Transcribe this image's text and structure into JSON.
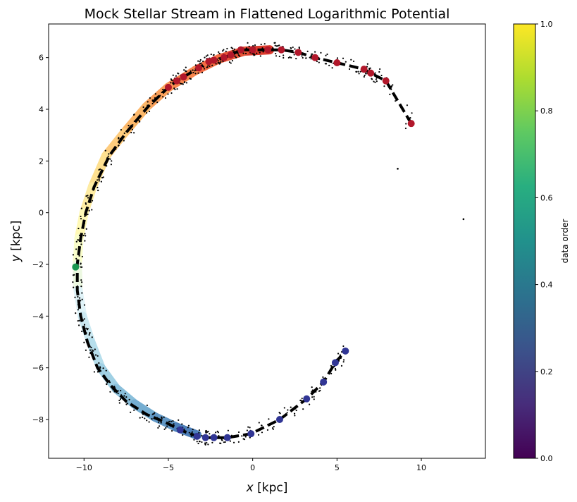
{
  "chart_data": {
    "type": "scatter",
    "title": "Mock Stellar Stream in Flattened Logarithmic Potential",
    "xlabel_var": "x",
    "xlabel_unit": " [kpc]",
    "ylabel_var": "y",
    "ylabel_unit": " [kpc]",
    "xlim": [
      -12.1,
      13.8
    ],
    "ylim": [
      -9.5,
      7.3
    ],
    "xticks": [
      -10,
      -5,
      0,
      5,
      10
    ],
    "yticks": [
      -8,
      -6,
      -4,
      -2,
      0,
      2,
      4,
      6
    ],
    "tick_labels_x": [
      "−10",
      "−5",
      "0",
      "5",
      "10"
    ],
    "tick_labels_y": [
      "−8",
      "−6",
      "−4",
      "−2",
      "0",
      "2",
      "4",
      "6"
    ],
    "grid": false,
    "colorbar": {
      "label": "data order",
      "colormap": "viridis",
      "range": [
        0,
        1
      ],
      "ticks": [
        0.0,
        0.2,
        0.4,
        0.6,
        0.8,
        1.0
      ],
      "tick_labels": [
        "0.0",
        "0.2",
        "0.4",
        "0.6",
        "0.8",
        "1.0"
      ]
    },
    "stream_band": {
      "colormap": "RdYlBu",
      "points": [
        [
          1.0,
          6.3
        ],
        [
          -0.5,
          6.25
        ],
        [
          -2.0,
          5.95
        ],
        [
          -3.4,
          5.5
        ],
        [
          -5.0,
          4.85
        ],
        [
          -6.3,
          4.1
        ],
        [
          -7.6,
          3.1
        ],
        [
          -8.7,
          2.2
        ],
        [
          -9.5,
          1.0
        ],
        [
          -10.0,
          0.0
        ],
        [
          -10.3,
          -1.0
        ],
        [
          -10.4,
          -2.0
        ],
        [
          -10.35,
          -3.0
        ],
        [
          -10.1,
          -4.0
        ],
        [
          -9.6,
          -5.0
        ],
        [
          -9.0,
          -6.0
        ],
        [
          -8.1,
          -6.8
        ],
        [
          -7.0,
          -7.4
        ],
        [
          -5.8,
          -7.9
        ],
        [
          -4.5,
          -8.3
        ],
        [
          -3.3,
          -8.6
        ]
      ]
    },
    "track": {
      "color": "#000000",
      "style": "dashed",
      "points": [
        [
          9.4,
          3.45
        ],
        [
          7.9,
          5.1
        ],
        [
          7.0,
          5.4
        ],
        [
          6.6,
          5.55
        ],
        [
          5.0,
          5.8
        ],
        [
          3.7,
          6.0
        ],
        [
          2.7,
          6.2
        ],
        [
          1.7,
          6.3
        ],
        [
          0.9,
          6.3
        ],
        [
          0.0,
          6.3
        ],
        [
          -0.7,
          6.3
        ],
        [
          -1.3,
          6.1
        ],
        [
          -1.7,
          6.0
        ],
        [
          -2.3,
          5.9
        ],
        [
          -2.6,
          5.85
        ],
        [
          -3.2,
          5.6
        ],
        [
          -4.1,
          5.25
        ],
        [
          -4.5,
          5.1
        ],
        [
          -5.0,
          4.85
        ],
        [
          -6.2,
          4.1
        ],
        [
          -7.5,
          3.1
        ],
        [
          -8.5,
          2.2
        ],
        [
          -9.4,
          1.0
        ],
        [
          -9.9,
          0.0
        ],
        [
          -10.2,
          -1.0
        ],
        [
          -10.4,
          -2.0
        ],
        [
          -10.4,
          -3.0
        ],
        [
          -10.2,
          -4.0
        ],
        [
          -9.8,
          -5.0
        ],
        [
          -9.2,
          -6.0
        ],
        [
          -8.4,
          -6.7
        ],
        [
          -7.5,
          -7.3
        ],
        [
          -6.3,
          -7.8
        ],
        [
          -5.2,
          -8.1
        ],
        [
          -4.3,
          -8.4
        ],
        [
          -3.3,
          -8.65
        ],
        [
          -2.8,
          -8.7
        ],
        [
          -2.3,
          -8.7
        ],
        [
          -1.5,
          -8.7
        ],
        [
          -0.1,
          -8.55
        ],
        [
          1.6,
          -8.0
        ],
        [
          3.2,
          -7.2
        ],
        [
          4.2,
          -6.55
        ],
        [
          4.9,
          -5.8
        ],
        [
          5.5,
          -5.35
        ]
      ]
    },
    "red_points": [
      [
        9.4,
        3.45
      ],
      [
        7.9,
        5.1
      ],
      [
        7.0,
        5.4
      ],
      [
        6.6,
        5.55
      ],
      [
        5.0,
        5.8
      ],
      [
        3.7,
        6.0
      ],
      [
        2.7,
        6.2
      ],
      [
        1.7,
        6.3
      ],
      [
        0.9,
        6.3
      ],
      [
        0.0,
        6.3
      ],
      [
        -0.7,
        6.3
      ],
      [
        -1.3,
        6.1
      ],
      [
        -1.7,
        6.0
      ],
      [
        -2.3,
        5.9
      ],
      [
        -2.6,
        5.85
      ],
      [
        -3.2,
        5.6
      ],
      [
        -4.1,
        5.25
      ],
      [
        -4.5,
        5.1
      ],
      [
        -5.0,
        4.85
      ]
    ],
    "red_color": "#b2182b",
    "blue_points": [
      [
        -4.3,
        -8.4
      ],
      [
        -3.3,
        -8.65
      ],
      [
        -2.8,
        -8.7
      ],
      [
        -2.3,
        -8.7
      ],
      [
        -1.5,
        -8.7
      ],
      [
        -0.1,
        -8.55
      ],
      [
        1.6,
        -8.0
      ],
      [
        3.2,
        -7.2
      ],
      [
        4.2,
        -6.55
      ],
      [
        4.9,
        -5.8
      ],
      [
        5.5,
        -5.35
      ]
    ],
    "blue_color": "#313695",
    "green_point": [
      -10.5,
      -2.1
    ],
    "outliers": [
      [
        12.5,
        -0.25
      ],
      [
        8.6,
        1.7
      ]
    ]
  }
}
